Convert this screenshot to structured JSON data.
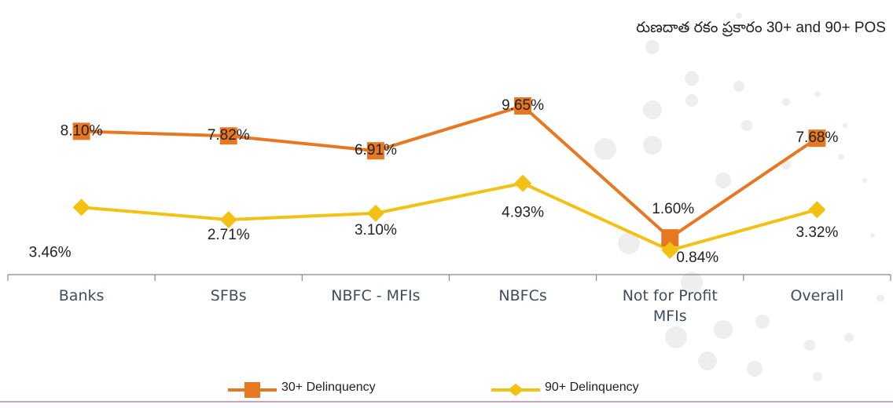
{
  "chart_data": {
    "type": "line",
    "title": "రుణదాత రకం ప్రకారం 30+ and 90+ POS",
    "categories": [
      "Banks",
      "SFBs",
      "NBFC - MFIs",
      "NBFCs",
      "Not for Profit MFIs",
      "Overall"
    ],
    "series": [
      {
        "name": "30+ Delinquency",
        "color": "#e87722",
        "marker": "square",
        "values": [
          8.1,
          7.82,
          6.91,
          9.65,
          1.6,
          7.68
        ],
        "value_labels": [
          "8.10%",
          "7.82%",
          "6.91%",
          "9.65%",
          "1.60%",
          "7.68%"
        ]
      },
      {
        "name": "90+ Delinquency",
        "color": "#f2c114",
        "marker": "diamond",
        "values": [
          3.46,
          2.71,
          3.1,
          4.93,
          0.84,
          3.32
        ],
        "value_labels": [
          "3.46%",
          "2.71%",
          "3.10%",
          "4.93%",
          "0.84%",
          "3.32%"
        ]
      }
    ],
    "legend": "bottom"
  }
}
